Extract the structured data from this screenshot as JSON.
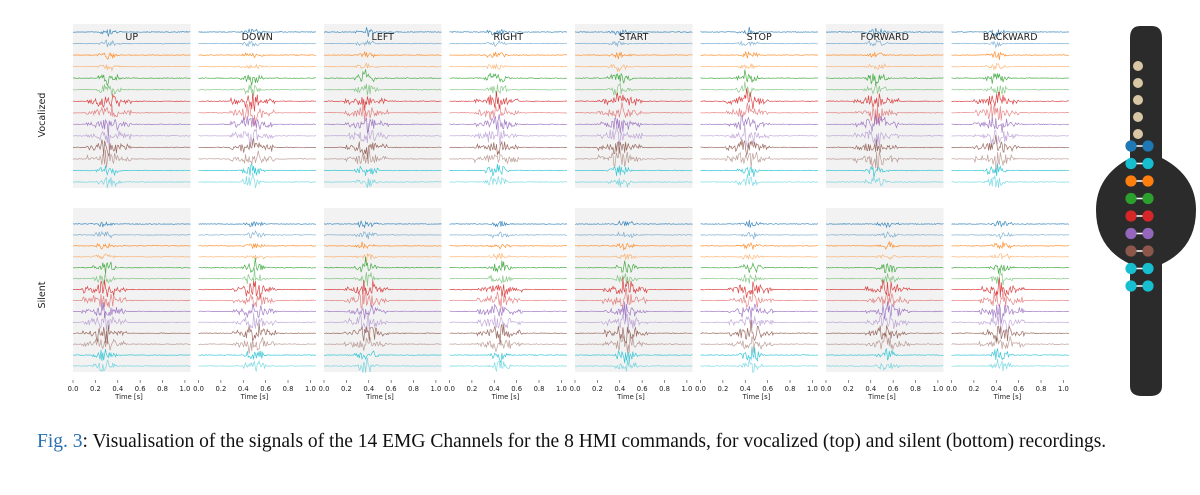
{
  "figure": {
    "commands": [
      "UP",
      "DOWN",
      "LEFT",
      "RIGHT",
      "START",
      "STOP",
      "FORWARD",
      "BACKWARD"
    ],
    "row_labels": [
      "Vocalized",
      "Silent"
    ],
    "channel_count": 14,
    "channel_colors": [
      "#1f77b4",
      "#1f77b4",
      "#ff7f0e",
      "#ff7f0e",
      "#2ca02c",
      "#2ca02c",
      "#d62728",
      "#d62728",
      "#9467bd",
      "#9467bd",
      "#8c564b",
      "#8c564b",
      "#17becf",
      "#17becf"
    ],
    "x_ticks": [
      "0.0",
      "0.2",
      "0.4",
      "0.6",
      "0.8",
      "1.0"
    ],
    "x_label": "Time [s]",
    "x_range": [
      0.0,
      1.05
    ],
    "activity_centers": {
      "vocalized": [
        0.32,
        0.48,
        0.38,
        0.42,
        0.4,
        0.42,
        0.45,
        0.4
      ],
      "silent": [
        0.28,
        0.5,
        0.38,
        0.45,
        0.45,
        0.45,
        0.55,
        0.45
      ]
    },
    "panel_shading": [
      "#f2f2f2",
      "#ffffff",
      "#f2f2f2",
      "#ffffff",
      "#f2f2f2",
      "#ffffff",
      "#f2f2f2",
      "#ffffff"
    ],
    "armband": {
      "body_color": "#2b2b2b",
      "electrode_pairs": [
        "#1f77b4",
        "#17becf",
        "#ff7f0e",
        "#2ca02c",
        "#d62728",
        "#9467bd",
        "#8c564b",
        "#17becf",
        "#17becf"
      ],
      "button_color": "#d9c6a5",
      "button_count": 5
    }
  },
  "caption": {
    "label": "Fig. 3",
    "text": ": Visualisation of the signals of the 14 EMG Channels for the 8 HMI commands, for vocalized (top) and silent (bottom) recordings."
  }
}
